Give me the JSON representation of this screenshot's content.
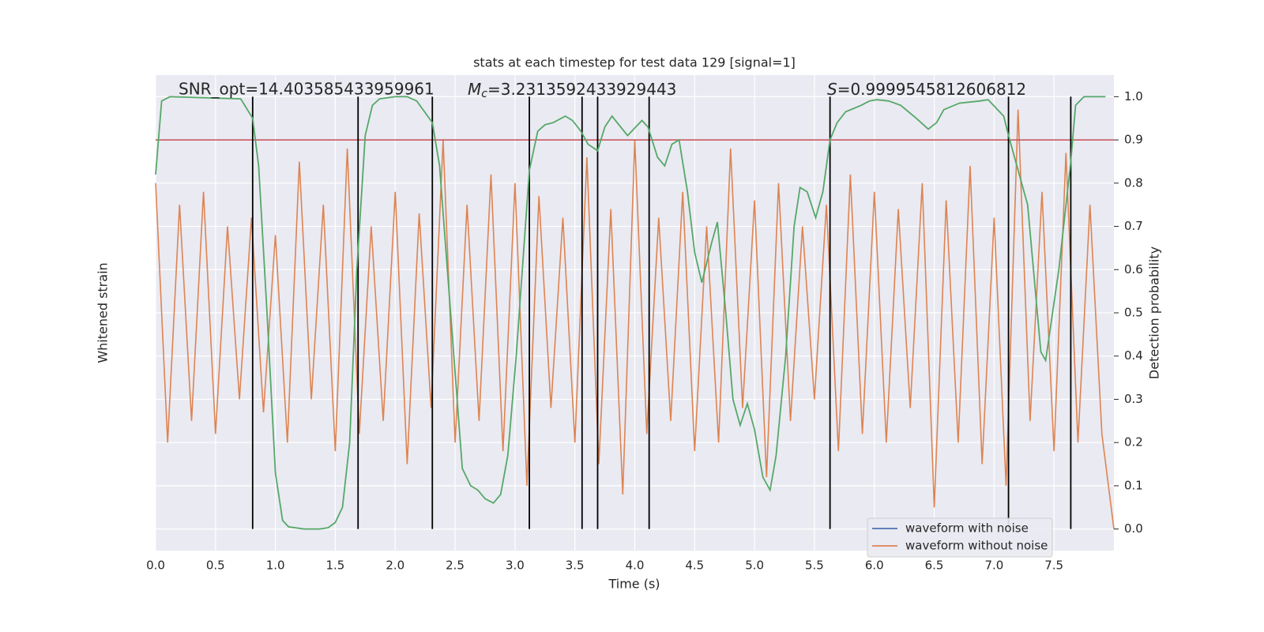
{
  "chart_data": {
    "type": "line",
    "title": "stats at each timestep for test data 129 [signal=1]",
    "annotations": {
      "snr": "SNR_opt=14.403585433959961",
      "mc": {
        "symbol": "M",
        "subscript": "c",
        "text": "=3.2313592433929443"
      },
      "s": {
        "symbol": "S",
        "text": "=0.9999545812606812"
      }
    },
    "xlabel": "Time (s)",
    "ylabel": "Whitened strain",
    "y2label": "Detection probability",
    "xlim": [
      0,
      8
    ],
    "xticks": [
      {
        "value": 0,
        "label": "0.0"
      },
      0.5,
      {
        "value": 1,
        "label": "1.0"
      },
      1.5,
      {
        "value": 2,
        "label": "2.0"
      },
      2.5,
      {
        "value": 3,
        "label": "3.0"
      },
      3.5,
      {
        "value": 4,
        "label": "4.0"
      },
      4.5,
      {
        "value": 5,
        "label": "5.0"
      },
      5.5,
      {
        "value": 6,
        "label": "6.0"
      },
      6.5,
      {
        "value": 7,
        "label": "7.0"
      },
      7.5
    ],
    "ylim": [
      -0.05,
      1.05
    ],
    "yticks": [
      {
        "value": 0,
        "label": "0.0"
      },
      0.1,
      0.2,
      0.3,
      0.4,
      0.5,
      0.6,
      0.7,
      0.8,
      0.9,
      {
        "value": 1,
        "label": "1.0"
      }
    ],
    "grid": true,
    "legend": {
      "loc": "lower right",
      "entries": [
        {
          "name": "waveform with noise",
          "color": "#4c72b0"
        },
        {
          "name": "waveform without noise",
          "color": "#dd8452"
        }
      ]
    },
    "waveform": {
      "color": "#dd8452",
      "x": [
        0,
        0.1,
        0.2,
        0.3,
        0.4,
        0.5,
        0.6,
        0.7,
        0.8,
        0.9,
        1,
        1.1,
        1.2,
        1.3,
        1.4,
        1.5,
        1.6,
        1.7,
        1.8,
        1.9,
        2,
        2.1,
        2.2,
        2.3,
        2.4,
        2.5,
        2.6,
        2.7,
        2.8,
        2.9,
        3,
        3.1,
        3.2,
        3.3,
        3.4,
        3.5,
        3.6,
        3.7,
        3.8,
        3.9,
        4,
        4.1,
        4.2,
        4.3,
        4.4,
        4.5,
        4.6,
        4.7,
        4.8,
        4.9,
        5,
        5.1,
        5.2,
        5.3,
        5.4,
        5.5,
        5.6,
        5.7,
        5.8,
        5.9,
        6,
        6.1,
        6.2,
        6.3,
        6.4,
        6.5,
        6.6,
        6.7,
        6.8,
        6.9,
        7,
        7.1,
        7.2,
        7.3,
        7.4,
        7.5,
        7.6,
        7.7,
        7.8,
        7.9,
        8
      ],
      "values": [
        0.8,
        0.2,
        0.75,
        0.25,
        0.78,
        0.22,
        0.7,
        0.3,
        0.72,
        0.27,
        0.68,
        0.2,
        0.85,
        0.3,
        0.75,
        0.18,
        0.88,
        0.22,
        0.7,
        0.25,
        0.78,
        0.15,
        0.73,
        0.28,
        0.9,
        0.2,
        0.75,
        0.25,
        0.82,
        0.18,
        0.8,
        0.1,
        0.77,
        0.28,
        0.72,
        0.2,
        0.86,
        0.15,
        0.74,
        0.08,
        0.9,
        0.22,
        0.72,
        0.25,
        0.78,
        0.18,
        0.7,
        0.2,
        0.88,
        0.28,
        0.76,
        0.12,
        0.8,
        0.25,
        0.7,
        0.3,
        0.75,
        0.18,
        0.82,
        0.22,
        0.78,
        0.2,
        0.74,
        0.28,
        0.8,
        0.05,
        0.76,
        0.2,
        0.84,
        0.15,
        0.72,
        0.1,
        0.97,
        0.25,
        0.78,
        0.18,
        0.87,
        0.2,
        0.75,
        0.22,
        0.0
      ]
    },
    "probability": {
      "color": "#55a868",
      "x": [
        0,
        0.05,
        0.12,
        0.71,
        0.81,
        0.86,
        0.93,
        1.0,
        1.06,
        1.11,
        1.24,
        1.37,
        1.44,
        1.5,
        1.56,
        1.62,
        1.68,
        1.75,
        1.81,
        1.87,
        2.0,
        2.1,
        2.18,
        2.31,
        2.37,
        2.56,
        2.63,
        2.69,
        2.75,
        2.82,
        2.88,
        2.94,
        3.01,
        3.12,
        3.19,
        3.25,
        3.32,
        3.42,
        3.48,
        3.55,
        3.61,
        3.69,
        3.75,
        3.81,
        3.94,
        4.06,
        4.11,
        4.19,
        4.25,
        4.31,
        4.37,
        4.44,
        4.5,
        4.56,
        4.64,
        4.69,
        4.76,
        4.82,
        4.88,
        4.94,
        5.0,
        5.07,
        5.13,
        5.18,
        5.26,
        5.33,
        5.38,
        5.44,
        5.51,
        5.57,
        5.63,
        5.69,
        5.76,
        5.89,
        5.96,
        6.02,
        6.12,
        6.22,
        6.35,
        6.45,
        6.52,
        6.58,
        6.71,
        6.88,
        6.95,
        7.08,
        7.12,
        7.28,
        7.39,
        7.43,
        7.54,
        7.64,
        7.68,
        7.75,
        7.93
      ],
      "values": [
        0.82,
        0.99,
        1.0,
        0.995,
        0.95,
        0.84,
        0.5,
        0.13,
        0.02,
        0.005,
        0.0,
        0.0,
        0.003,
        0.015,
        0.05,
        0.2,
        0.6,
        0.91,
        0.98,
        0.995,
        1.0,
        1.0,
        0.99,
        0.94,
        0.84,
        0.14,
        0.1,
        0.09,
        0.07,
        0.06,
        0.08,
        0.17,
        0.4,
        0.83,
        0.92,
        0.935,
        0.94,
        0.955,
        0.945,
        0.92,
        0.89,
        0.875,
        0.93,
        0.955,
        0.91,
        0.945,
        0.93,
        0.86,
        0.84,
        0.89,
        0.9,
        0.78,
        0.64,
        0.57,
        0.66,
        0.71,
        0.5,
        0.3,
        0.24,
        0.29,
        0.23,
        0.12,
        0.09,
        0.17,
        0.4,
        0.7,
        0.79,
        0.78,
        0.72,
        0.78,
        0.9,
        0.94,
        0.965,
        0.98,
        0.99,
        0.993,
        0.99,
        0.98,
        0.95,
        0.925,
        0.94,
        0.97,
        0.985,
        0.99,
        0.993,
        0.955,
        0.91,
        0.75,
        0.41,
        0.39,
        0.6,
        0.85,
        0.98,
        1.0,
        1.0
      ]
    },
    "threshold": {
      "value": 0.9,
      "color": "#c44e52"
    },
    "markers": {
      "color": "#000000",
      "x": [
        0.81,
        1.69,
        2.31,
        3.12,
        3.56,
        3.69,
        4.12,
        5.63,
        7.12,
        7.64
      ]
    }
  }
}
